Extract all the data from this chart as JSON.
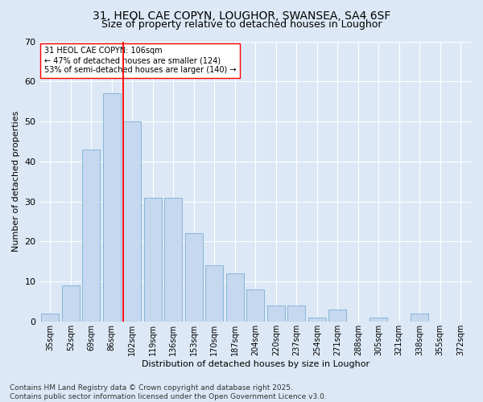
{
  "title_line1": "31, HEOL CAE COPYN, LOUGHOR, SWANSEA, SA4 6SF",
  "title_line2": "Size of property relative to detached houses in Loughor",
  "xlabel": "Distribution of detached houses by size in Loughor",
  "ylabel": "Number of detached properties",
  "categories": [
    "35sqm",
    "52sqm",
    "69sqm",
    "86sqm",
    "102sqm",
    "119sqm",
    "136sqm",
    "153sqm",
    "170sqm",
    "187sqm",
    "204sqm",
    "220sqm",
    "237sqm",
    "254sqm",
    "271sqm",
    "288sqm",
    "305sqm",
    "321sqm",
    "338sqm",
    "355sqm",
    "372sqm"
  ],
  "values": [
    2,
    9,
    43,
    57,
    50,
    31,
    31,
    22,
    14,
    12,
    8,
    4,
    4,
    1,
    3,
    0,
    1,
    0,
    2,
    0,
    0
  ],
  "bar_color": "#c5d8ef",
  "bar_edge_color": "#7bafd4",
  "vline_color": "red",
  "annotation_text": "31 HEOL CAE COPYN: 106sqm\n← 47% of detached houses are smaller (124)\n53% of semi-detached houses are larger (140) →",
  "annotation_box_color": "white",
  "annotation_box_edge_color": "red",
  "background_color": "#dce8f5",
  "plot_bg_color": "#dce8f5",
  "grid_color": "white",
  "fig_bg_color": "#dce8f5",
  "ylim": [
    0,
    70
  ],
  "yticks": [
    0,
    10,
    20,
    30,
    40,
    50,
    60,
    70
  ],
  "footer_line1": "Contains HM Land Registry data © Crown copyright and database right 2025.",
  "footer_line2": "Contains public sector information licensed under the Open Government Licence v3.0.",
  "title_fontsize": 10,
  "subtitle_fontsize": 9,
  "tick_fontsize": 7,
  "ylabel_fontsize": 8,
  "xlabel_fontsize": 8,
  "annotation_fontsize": 7,
  "footer_fontsize": 6.5
}
